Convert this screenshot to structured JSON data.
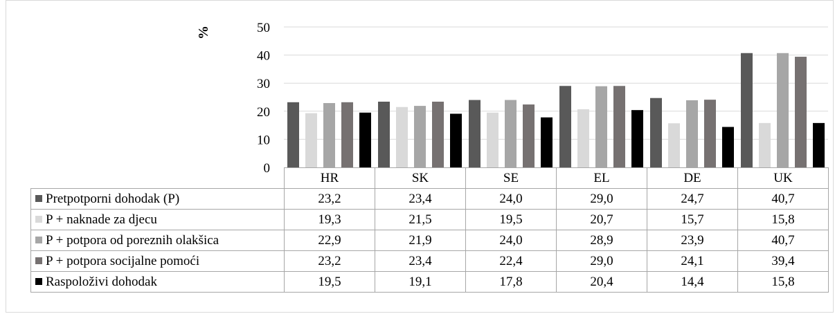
{
  "chart_data": {
    "type": "bar",
    "ylabel": "%",
    "ylim": [
      0,
      50
    ],
    "yticks": [
      0,
      10,
      20,
      30,
      40,
      50
    ],
    "grid": true,
    "legend": "table-below",
    "categories": [
      "HR",
      "SK",
      "SE",
      "EL",
      "DE",
      "UK"
    ],
    "series": [
      {
        "name": "Pretpotporni dohodak (P)",
        "color": "#595959",
        "values": [
          23.2,
          23.4,
          24.0,
          29.0,
          24.7,
          40.7
        ],
        "labels": [
          "23,2",
          "23,4",
          "24,0",
          "29,0",
          "24,7",
          "40,7"
        ]
      },
      {
        "name": "P + naknade za djecu",
        "color": "#d9d9d9",
        "values": [
          19.3,
          21.5,
          19.5,
          20.7,
          15.7,
          15.8
        ],
        "labels": [
          "19,3",
          "21,5",
          "19,5",
          "20,7",
          "15,7",
          "15,8"
        ]
      },
      {
        "name": "P + potpora od poreznih olakšica",
        "color": "#a6a6a6",
        "values": [
          22.9,
          21.9,
          24.0,
          28.9,
          23.9,
          40.7
        ],
        "labels": [
          "22,9",
          "21,9",
          "24,0",
          "28,9",
          "23,9",
          "40,7"
        ]
      },
      {
        "name": "P + potpora socijalne pomoći",
        "color": "#767171",
        "values": [
          23.2,
          23.4,
          22.4,
          29.0,
          24.1,
          39.4
        ],
        "labels": [
          "23,2",
          "23,4",
          "22,4",
          "29,0",
          "24,1",
          "39,4"
        ]
      },
      {
        "name": "Raspoloživi dohodak",
        "color": "#000000",
        "values": [
          19.5,
          19.1,
          17.8,
          20.4,
          14.4,
          15.8
        ],
        "labels": [
          "19,5",
          "19,1",
          "17,8",
          "20,4",
          "14,4",
          "15,8"
        ]
      }
    ]
  }
}
